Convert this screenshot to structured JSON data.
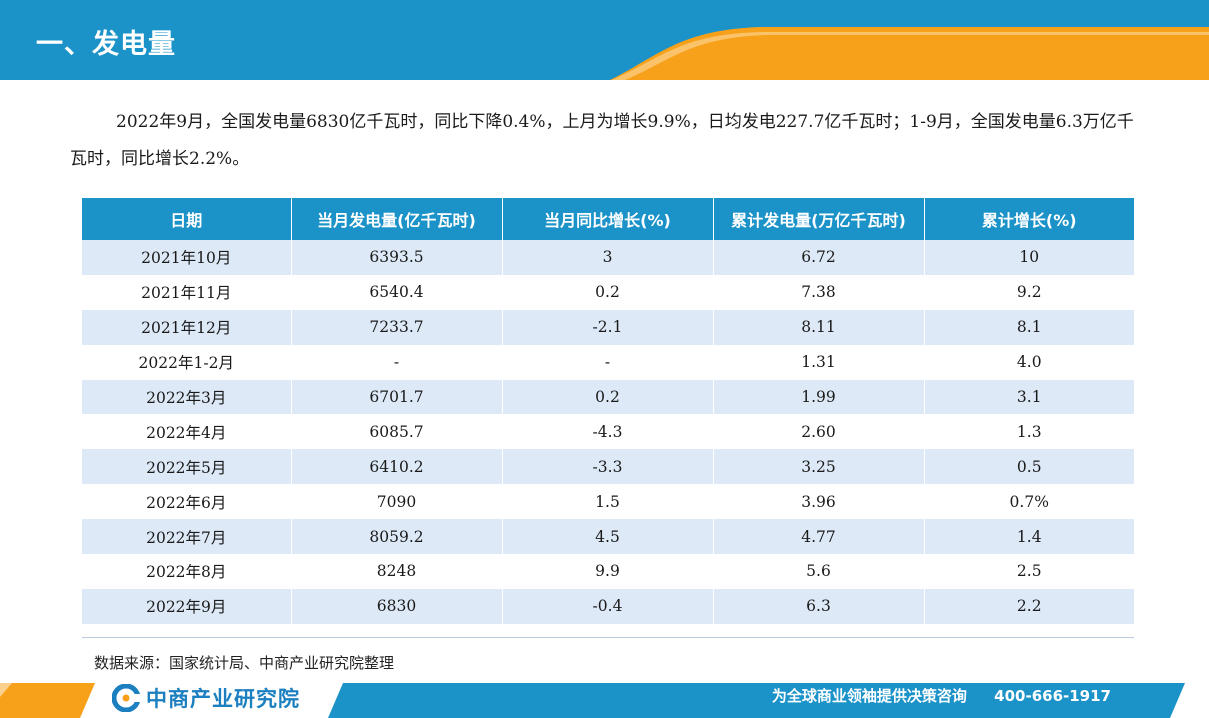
{
  "header": {
    "title": "一、发电量"
  },
  "intro": "2022年9月，全国发电量6830亿千瓦时，同比下降0.4%，上月为增长9.9%，日均发电227.7亿千瓦时；1-9月，全国发电量6.3万亿千瓦时，同比增长2.2%。",
  "table": {
    "headers": [
      "日期",
      "当月发电量(亿千瓦时)",
      "当月同比增长(%)",
      "累计发电量(万亿千瓦时)",
      "累计增长(%)"
    ],
    "rows": [
      [
        "2021年10月",
        "6393.5",
        "3",
        "6.72",
        "10"
      ],
      [
        "2021年11月",
        "6540.4",
        "0.2",
        "7.38",
        "9.2"
      ],
      [
        "2021年12月",
        "7233.7",
        "-2.1",
        "8.11",
        "8.1"
      ],
      [
        "2022年1-2月",
        "-",
        "-",
        "1.31",
        "4.0"
      ],
      [
        "2022年3月",
        "6701.7",
        "0.2",
        "1.99",
        "3.1"
      ],
      [
        "2022年4月",
        "6085.7",
        "-4.3",
        "2.60",
        "1.3"
      ],
      [
        "2022年5月",
        "6410.2",
        "-3.3",
        "3.25",
        "0.5"
      ],
      [
        "2022年6月",
        "7090",
        "1.5",
        "3.96",
        "0.7%"
      ],
      [
        "2022年7月",
        "8059.2",
        "4.5",
        "4.77",
        "1.4"
      ],
      [
        "2022年8月",
        "8248",
        "9.9",
        "5.6",
        "2.5"
      ],
      [
        "2022年9月",
        "6830",
        "-0.4",
        "6.3",
        "2.2"
      ]
    ]
  },
  "source": "数据来源：国家统计局、中商产业研究院整理",
  "footer": {
    "logo_text": "中商产业研究院",
    "slogan": "为全球商业领袖提供决策咨询",
    "phone": "400-666-1917"
  },
  "colors": {
    "header_blue": "#1b93c9",
    "accent_orange": "#f7a11a",
    "row_tint": "#dde9f7"
  },
  "watermark_text": "中商产业研究院"
}
